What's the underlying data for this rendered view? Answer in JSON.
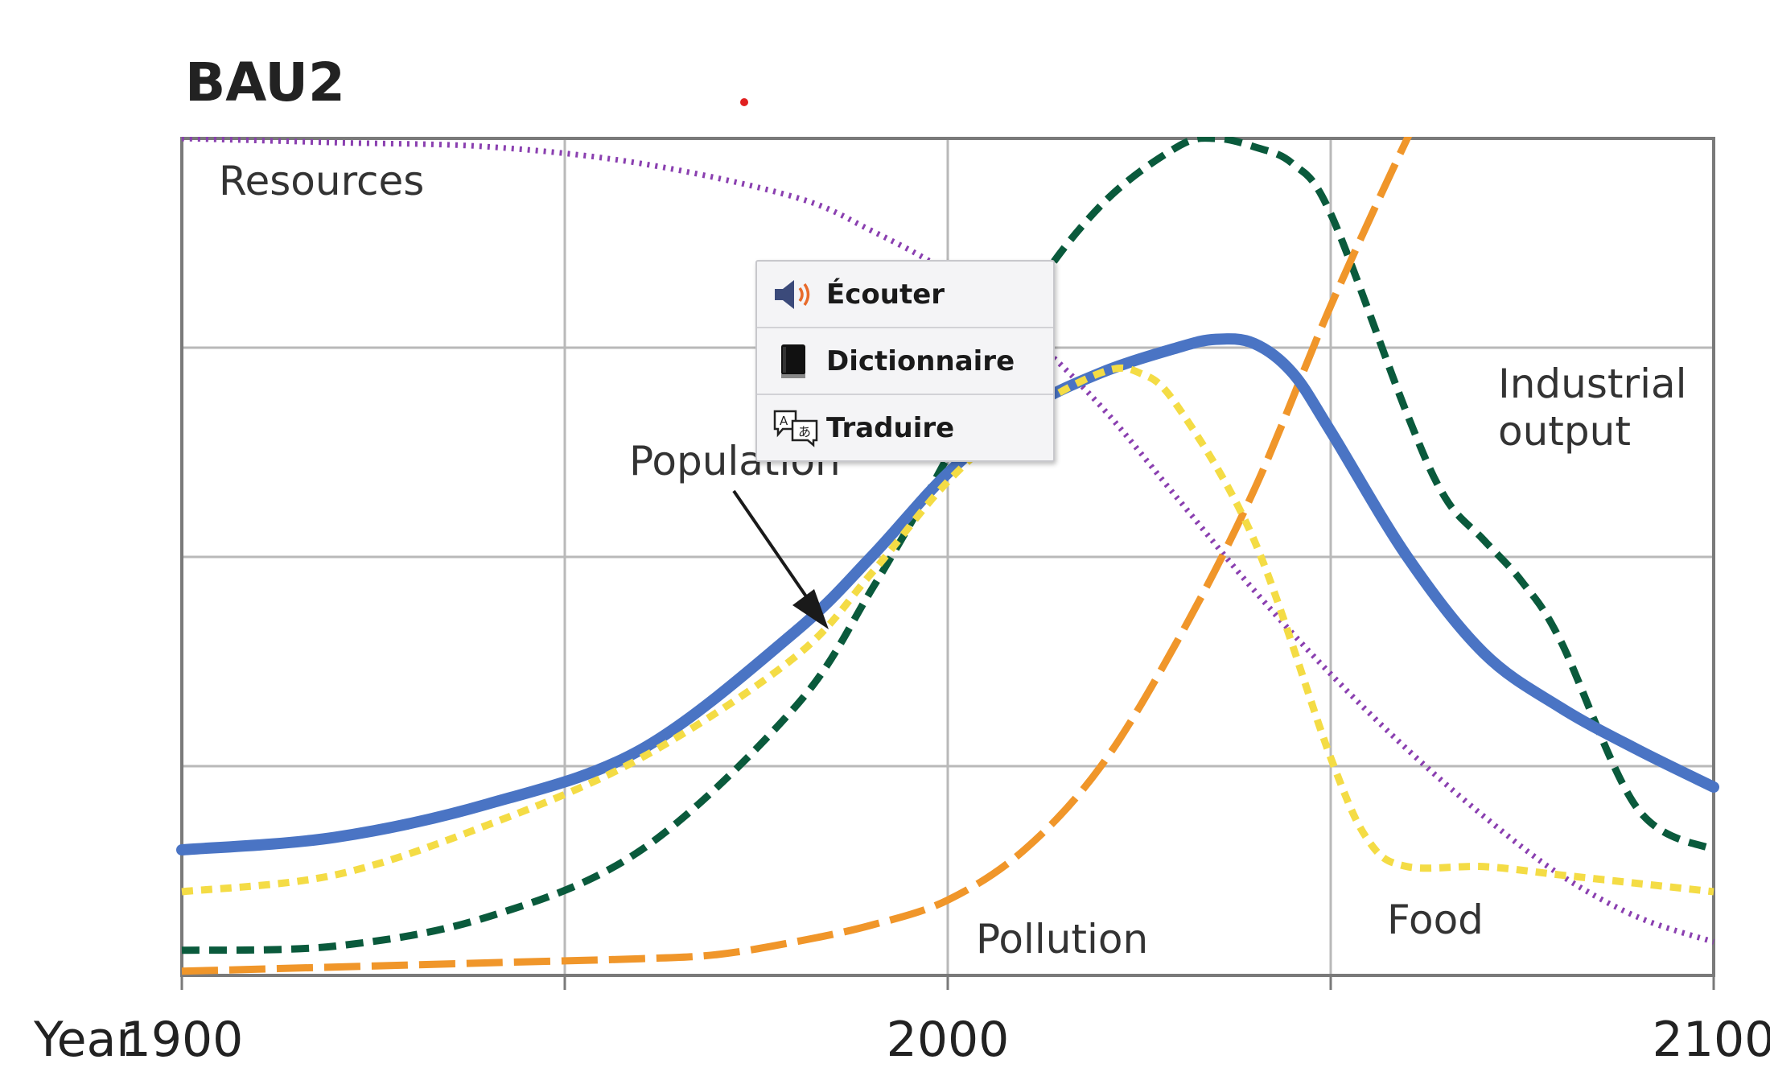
{
  "chart_data": {
    "type": "line",
    "title": "BAU2",
    "x_axis_prefix": "Year",
    "xlim": [
      1900,
      2100
    ],
    "ylim": [
      0,
      100
    ],
    "xticks": [
      "1900",
      "2000",
      "2100"
    ],
    "grid": true,
    "series": [
      {
        "name": "Resources",
        "style": "dotted",
        "color": "#8a3fb0",
        "x": [
          1900,
          1920,
          1940,
          1960,
          1980,
          1990,
          2000,
          2010,
          2020,
          2030,
          2040,
          2050,
          2060,
          2070,
          2080,
          2090,
          2100
        ],
        "values": [
          100,
          99.5,
          99,
          97,
          93,
          89,
          84,
          77,
          68,
          57,
          46,
          36,
          27,
          19,
          12,
          7,
          4
        ]
      },
      {
        "name": "Industrial output",
        "style": "dashed",
        "color": "#0a5a3c",
        "x": [
          1900,
          1920,
          1940,
          1960,
          1980,
          1990,
          2000,
          2010,
          2020,
          2030,
          2035,
          2040,
          2045,
          2050,
          2060,
          2065,
          2070,
          2075,
          2080,
          2090,
          2100
        ],
        "values": [
          3,
          3.5,
          7,
          15,
          32,
          46,
          62,
          80,
          92,
          99,
          100,
          99,
          97,
          91,
          67,
          57,
          52,
          47,
          40,
          20,
          15
        ]
      },
      {
        "name": "Pollution",
        "style": "long-dashed",
        "color": "#f0962a",
        "x": [
          1900,
          1920,
          1940,
          1960,
          1970,
          1980,
          1990,
          2000,
          2010,
          2020,
          2030,
          2040,
          2050,
          2060,
          2062
        ],
        "values": [
          0.5,
          1,
          1.5,
          2,
          2.5,
          4,
          6,
          9,
          15,
          25,
          40,
          58,
          80,
          100,
          103
        ]
      },
      {
        "name": "Population",
        "style": "solid",
        "color": "#4a74c4",
        "x": [
          1900,
          1920,
          1940,
          1960,
          1980,
          1990,
          2000,
          2010,
          2020,
          2030,
          2035,
          2040,
          2045,
          2050,
          2060,
          2070,
          2080,
          2090,
          2100
        ],
        "values": [
          15,
          16.5,
          20.5,
          27,
          41,
          50,
          60,
          67.5,
          72,
          75,
          76,
          75.5,
          72,
          65,
          50,
          38.5,
          32,
          27,
          22.5
        ]
      },
      {
        "name": "Food",
        "style": "short-dashed",
        "color": "#f4dc45",
        "x": [
          1900,
          1920,
          1940,
          1960,
          1980,
          1990,
          2000,
          2010,
          2020,
          2025,
          2030,
          2040,
          2050,
          2055,
          2060,
          2070,
          2080,
          2090,
          2100
        ],
        "values": [
          10,
          12,
          18,
          26,
          38,
          48,
          59,
          67,
          72,
          72,
          68,
          52,
          26,
          16,
          13,
          13,
          12,
          11,
          10
        ]
      }
    ],
    "annotations": [
      {
        "text": "Resources"
      },
      {
        "text": "Population"
      },
      {
        "text": "Industrial",
        "text2": "output"
      },
      {
        "text": "Pollution"
      },
      {
        "text": "Food"
      }
    ]
  },
  "popup_menu": {
    "items": [
      {
        "label": "Écouter",
        "icon": "speaker-icon"
      },
      {
        "label": "Dictionnaire",
        "icon": "book-icon"
      },
      {
        "label": "Traduire",
        "icon": "translate-icon"
      }
    ]
  },
  "colors": {
    "grid": "#b9b9b9",
    "axis": "#7a7a7a",
    "text": "#222222",
    "arrow": "#1a1a1a"
  }
}
